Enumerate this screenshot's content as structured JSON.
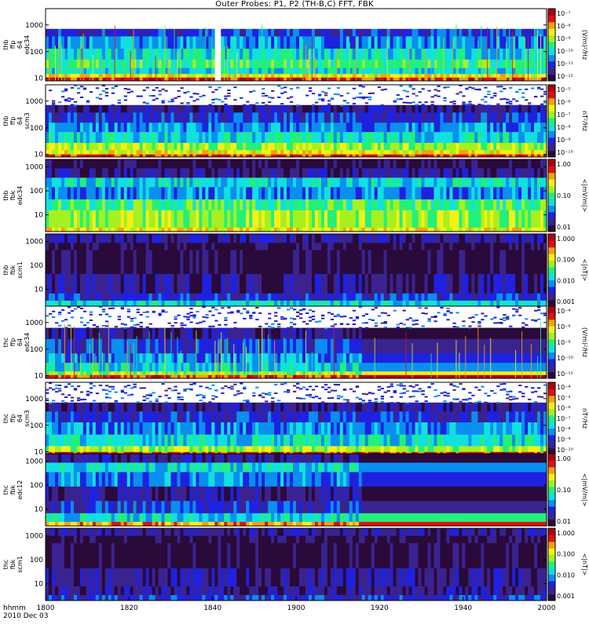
{
  "title": "Outer Probes: P1, P2 (TH-B,C) FFT, FBK",
  "time_axis": {
    "row1": "hhmm",
    "row2": "2010 Dec 03",
    "ticks": [
      "1800",
      "1820",
      "1840",
      "1900",
      "1920",
      "1940",
      "2000"
    ]
  },
  "colors": {
    "spectrum": [
      "#2a0a3a",
      "#3a2390",
      "#1e22e0",
      "#0a8ef0",
      "#11e0e0",
      "#22f07a",
      "#a6f020",
      "#f6f015",
      "#f5a010",
      "#e01010",
      "#b00010"
    ]
  },
  "chart_data": [
    {
      "type": "heatmap",
      "panel": "thb ffp 64 edc34",
      "ylabel": [
        "thb",
        "ffp",
        "64",
        "edc34"
      ],
      "yscale": "log",
      "ylim": [
        8,
        4096
      ],
      "yticks": [
        "1000",
        "100",
        "10"
      ],
      "colorbar_ticks": [
        "10⁻⁷",
        "10⁻⁸",
        "10⁻⁹",
        "10⁻¹⁰",
        "10⁻¹¹",
        "10⁻¹²"
      ],
      "colorbar_label": "(V/m)²/Hz",
      "data_gap_start": "1840"
    },
    {
      "type": "heatmap",
      "panel": "thb ffp 64 scm3",
      "ylabel": [
        "thb",
        "ffp",
        "64",
        "scm3"
      ],
      "yscale": "log",
      "ylim": [
        8,
        4096
      ],
      "yticks": [
        "1000",
        "100",
        "10"
      ],
      "colorbar_ticks": [
        "10⁻⁵",
        "10⁻⁶",
        "10⁻⁷",
        "10⁻⁸",
        "10⁻⁹",
        "10⁻¹⁰"
      ],
      "colorbar_label": "nT²/Hz"
    },
    {
      "type": "heatmap",
      "panel": "thb fbk edc34",
      "ylabel": [
        "thb",
        "fbk",
        "edc34"
      ],
      "yscale": "log",
      "ylim": [
        2,
        2048
      ],
      "yticks": [
        "1000",
        "100",
        "10"
      ],
      "colorbar_ticks": [
        "1.00",
        "0.10",
        "0.01"
      ],
      "colorbar_label": "<|mV/m|>"
    },
    {
      "type": "heatmap",
      "panel": "thb fbk scm1",
      "ylabel": [
        "thb",
        "fbk",
        "scm1"
      ],
      "yscale": "log",
      "ylim": [
        2,
        2048
      ],
      "yticks": [
        "1000",
        "100",
        "10"
      ],
      "colorbar_ticks": [
        "1.000",
        "0.100",
        "0.010",
        "0.001"
      ],
      "colorbar_label": "<|nT|>"
    },
    {
      "type": "heatmap",
      "panel": "thc ffp 64 edc34",
      "ylabel": [
        "thc",
        "ffp",
        "64",
        "edc34"
      ],
      "yscale": "log",
      "ylim": [
        8,
        4096
      ],
      "yticks": [
        "1000",
        "100",
        "10"
      ],
      "colorbar_ticks": [
        "10⁻⁴",
        "10⁻⁶",
        "10⁻⁸",
        "10⁻¹⁰",
        "10⁻¹²"
      ],
      "colorbar_label": "(V/m)²/Hz",
      "event_start": "1915"
    },
    {
      "type": "heatmap",
      "panel": "thc ffp 64 scm3",
      "ylabel": [
        "thc",
        "ffp",
        "64",
        "scm3"
      ],
      "yscale": "log",
      "ylim": [
        8,
        4096
      ],
      "yticks": [
        "1000",
        "100",
        "10"
      ],
      "colorbar_ticks": [
        "10⁻⁴",
        "10⁻⁵",
        "10⁻⁶",
        "10⁻⁷",
        "10⁻⁸",
        "10⁻⁹",
        "10⁻¹⁰"
      ],
      "colorbar_label": "nT²/Hz"
    },
    {
      "type": "heatmap",
      "panel": "thc fbk edc12",
      "ylabel": [
        "thc",
        "fbk",
        "edc12"
      ],
      "yscale": "log",
      "ylim": [
        2,
        2048
      ],
      "yticks": [
        "1000",
        "100",
        "10"
      ],
      "colorbar_ticks": [
        "1.00",
        "0.10",
        "0.01"
      ],
      "colorbar_label": "<|mV/m|>",
      "event_start": "1915"
    },
    {
      "type": "heatmap",
      "panel": "thc fbk scm1",
      "ylabel": [
        "thc",
        "fbk",
        "scm1"
      ],
      "yscale": "log",
      "ylim": [
        2,
        2048
      ],
      "yticks": [
        "1000",
        "100",
        "10"
      ],
      "colorbar_ticks": [
        "1.000",
        "0.100",
        "0.010",
        "0.001"
      ],
      "colorbar_label": "<|nT|>"
    }
  ]
}
